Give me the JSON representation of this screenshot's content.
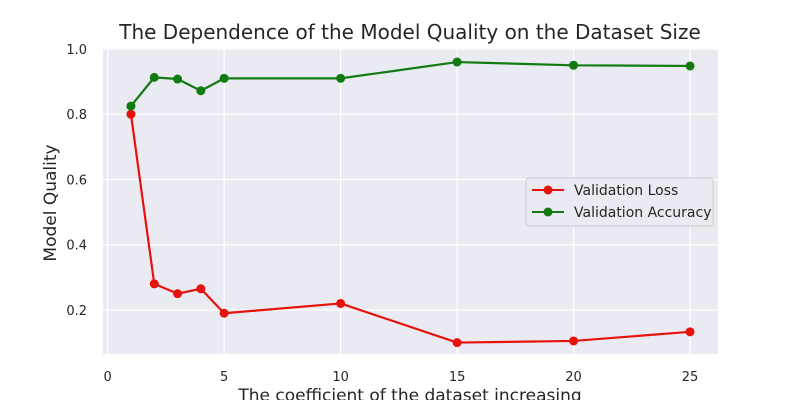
{
  "chart_data": {
    "type": "line",
    "title": "The Dependence of the Model Quality on the Dataset Size",
    "xlabel": "The coefficient of the dataset increasing",
    "ylabel": "Model Quality",
    "xlim": [
      -0.2,
      26.2
    ],
    "ylim": [
      0.065,
      1.0
    ],
    "xticks": [
      0,
      5,
      10,
      15,
      20,
      25
    ],
    "yticks": [
      0.2,
      0.4,
      0.6,
      0.8,
      1.0
    ],
    "xtick_labels": [
      "0",
      "5",
      "10",
      "15",
      "20",
      "25"
    ],
    "ytick_labels": [
      "0.2",
      "0.4",
      "0.6",
      "0.8",
      "1.0"
    ],
    "x": [
      1,
      2,
      3,
      4,
      5,
      10,
      15,
      20,
      25
    ],
    "series": [
      {
        "name": "Validation Loss",
        "color": "#e8120c",
        "values": [
          0.8,
          0.28,
          0.25,
          0.265,
          0.19,
          0.22,
          0.1,
          0.105,
          0.133
        ]
      },
      {
        "name": "Validation Accuracy",
        "color": "#117a11",
        "values": [
          0.825,
          0.913,
          0.908,
          0.872,
          0.91,
          0.91,
          0.96,
          0.95,
          0.948
        ]
      }
    ],
    "grid": true,
    "background": "#eaeaf2",
    "legend_position": "center-right"
  }
}
